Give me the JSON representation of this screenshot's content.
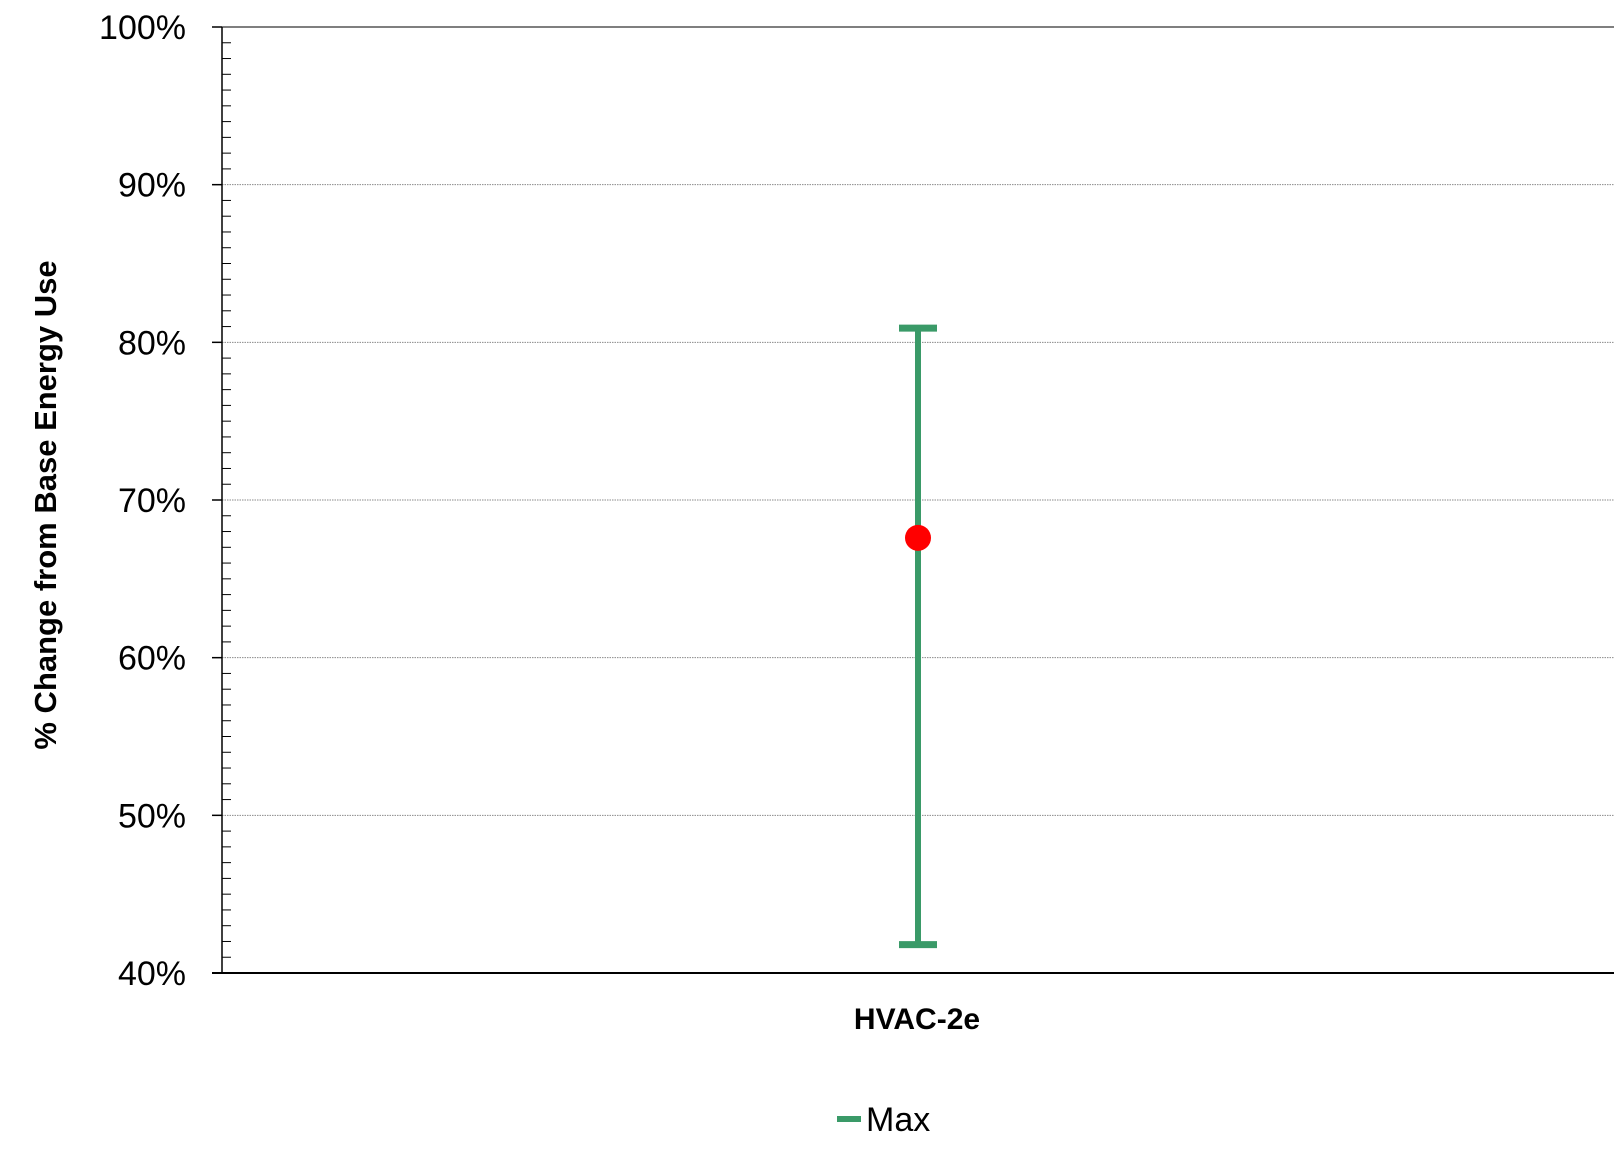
{
  "chart_data": {
    "type": "scatter",
    "title": "",
    "xlabel": "",
    "ylabel": "% Change from Base Energy Use",
    "ylim": [
      40,
      100
    ],
    "y_ticks": [
      40,
      50,
      60,
      70,
      80,
      90,
      100
    ],
    "y_tick_labels": [
      "40%",
      "50%",
      "60%",
      "70%",
      "80%",
      "90%",
      "100%"
    ],
    "y_minor_step": 1,
    "grid": true,
    "categories": [
      "HVAC-2e"
    ],
    "error_bars": [
      {
        "category": "HVAC-2e",
        "min": 41.8,
        "max": 80.9
      }
    ],
    "points": [
      {
        "category": "HVAC-2e",
        "value": 67.6
      }
    ],
    "colors": {
      "range": "#3a9a68",
      "point": "#ff0000"
    },
    "legend": {
      "position": "bottom",
      "entries": [
        {
          "label": "Max",
          "marker": "dash",
          "color": "#3a9a68"
        }
      ]
    }
  }
}
